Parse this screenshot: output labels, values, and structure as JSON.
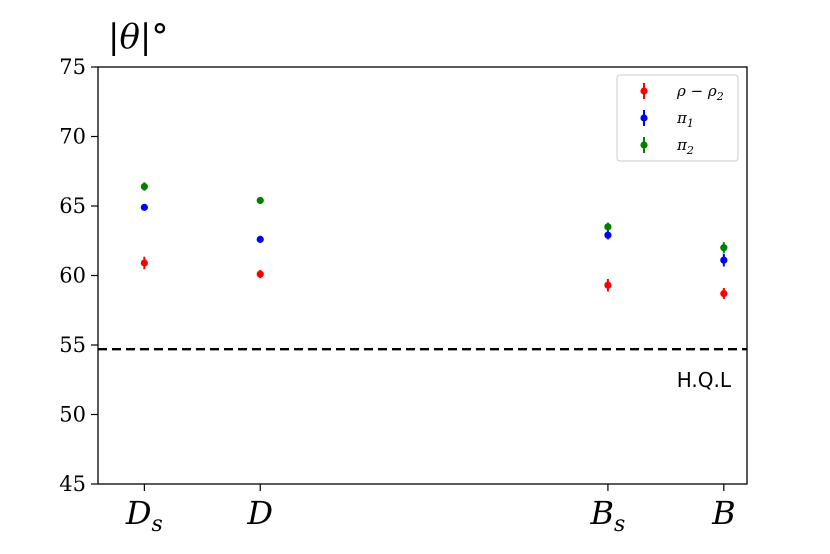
{
  "chart_data": {
    "type": "scatter",
    "title": "",
    "ylabel": "|θ|°",
    "xlabel": "",
    "ylim": [
      45,
      75
    ],
    "yticks": [
      45,
      50,
      55,
      60,
      65,
      70,
      75
    ],
    "categories": [
      {
        "base": "D",
        "sub": "s"
      },
      {
        "base": "D",
        "sub": ""
      },
      {
        "base": "B",
        "sub": "s"
      },
      {
        "base": "B",
        "sub": ""
      }
    ],
    "category_positions": [
      0,
      1,
      4,
      5
    ],
    "xlim": [
      -0.4,
      5.2
    ],
    "grid": false,
    "legend_position": "top-right",
    "series": [
      {
        "name": "ρ − ρ",
        "name_sub": "2",
        "color": "#ff0000",
        "values": [
          60.9,
          60.1,
          59.3,
          58.7
        ],
        "errors": [
          0.45,
          0.3,
          0.45,
          0.4
        ]
      },
      {
        "name": "π",
        "name_sub": "1",
        "color": "#0000ff",
        "values": [
          64.9,
          62.6,
          62.9,
          61.1
        ],
        "errors": [
          0.1,
          0.1,
          0.3,
          0.45
        ]
      },
      {
        "name": "π",
        "name_sub": "2",
        "color": "#008000",
        "values": [
          66.4,
          65.4,
          63.5,
          62.0
        ],
        "errors": [
          0.3,
          0.1,
          0.3,
          0.4
        ]
      }
    ],
    "reference_line": {
      "value": 54.7,
      "label": "H.Q.L",
      "style": "dashed",
      "color": "#000000"
    }
  }
}
